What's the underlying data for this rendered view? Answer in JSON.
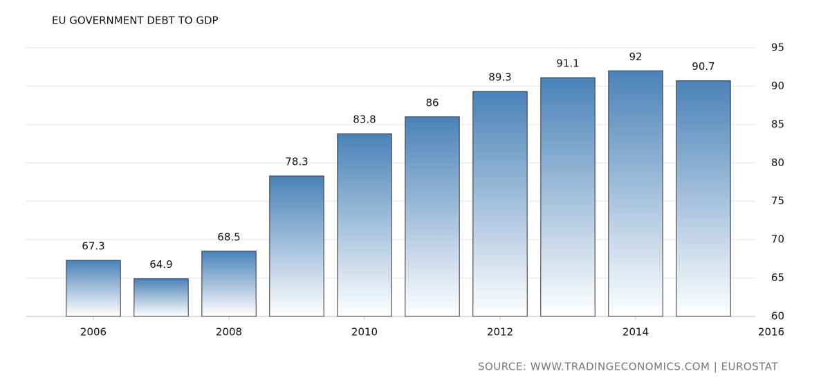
{
  "chart_data": {
    "type": "bar",
    "title": "EU GOVERNMENT DEBT TO GDP",
    "source": "SOURCE:  WWW.TRADINGECONOMICS.COM  |  EUROSTAT",
    "x": [
      2006,
      2007,
      2008,
      2009,
      2010,
      2011,
      2012,
      2013,
      2014,
      2015
    ],
    "values": [
      67.3,
      64.9,
      68.5,
      78.3,
      83.8,
      86,
      89.3,
      91.1,
      92,
      90.7
    ],
    "color": "#4a82b8",
    "xlim": [
      2005,
      2016
    ],
    "xticks": [
      2006,
      2008,
      2010,
      2012,
      2014,
      2016
    ],
    "ylim": [
      60,
      95
    ],
    "yticks": [
      60,
      65,
      70,
      75,
      80,
      85,
      90,
      95
    ],
    "grid": true
  }
}
